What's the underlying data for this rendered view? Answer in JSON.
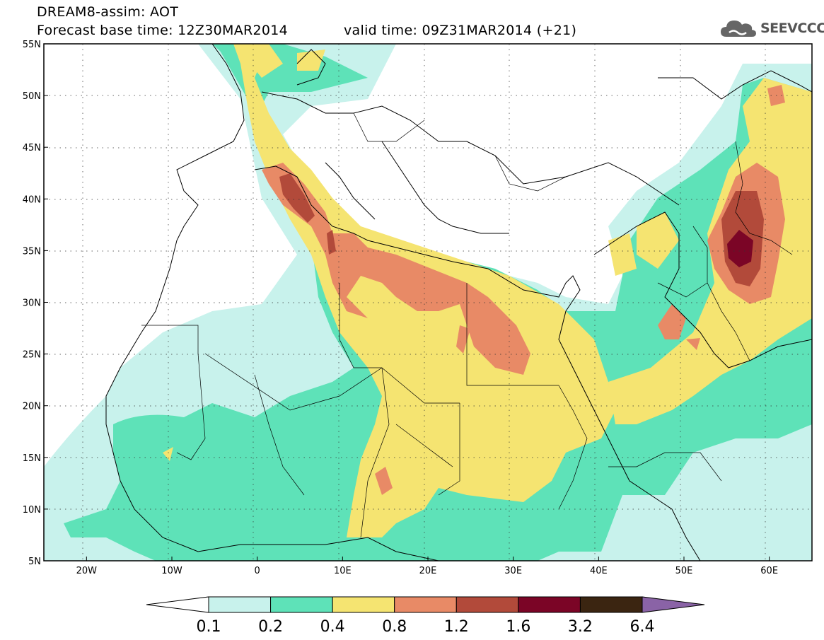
{
  "header": {
    "title": "DREAM8-assim: AOT",
    "base_time": "Forecast base time: 12Z30MAR2014",
    "valid_time": "valid time: 09Z31MAR2014 (+21)"
  },
  "logo": {
    "text": "SEEVCCC",
    "icon": "cloud-icon"
  },
  "map": {
    "lon_range": [
      -25,
      65
    ],
    "lat_range": [
      5,
      55
    ],
    "lat_ticks": [
      {
        "value": 55,
        "label": "55N"
      },
      {
        "value": 50,
        "label": "50N"
      },
      {
        "value": 45,
        "label": "45N"
      },
      {
        "value": 40,
        "label": "40N"
      },
      {
        "value": 35,
        "label": "35N"
      },
      {
        "value": 30,
        "label": "30N"
      },
      {
        "value": 25,
        "label": "25N"
      },
      {
        "value": 20,
        "label": "20N"
      },
      {
        "value": 15,
        "label": "15N"
      },
      {
        "value": 10,
        "label": "10N"
      },
      {
        "value": 5,
        "label": "5N"
      }
    ],
    "lon_ticks": [
      {
        "value": -20,
        "label": "20W"
      },
      {
        "value": -10,
        "label": "10W"
      },
      {
        "value": 0,
        "label": "0"
      },
      {
        "value": 10,
        "label": "10E"
      },
      {
        "value": 20,
        "label": "20E"
      },
      {
        "value": 30,
        "label": "30E"
      },
      {
        "value": 40,
        "label": "40E"
      },
      {
        "value": 50,
        "label": "50E"
      },
      {
        "value": 60,
        "label": "60E"
      }
    ],
    "grid": "dotted",
    "colors": {
      "c01": "#c8f2ec",
      "c02": "#5ee2b8",
      "c04": "#f5e471",
      "c08": "#e88a66",
      "c12": "#b24a3a",
      "c16": "#7b0526",
      "c32": "#3b2511",
      "c64": "#8a63a6"
    }
  },
  "colorbar": {
    "labels": [
      "0.1",
      "0.2",
      "0.4",
      "0.8",
      "1.2",
      "1.6",
      "3.2",
      "6.4"
    ],
    "colors": [
      "#c8f2ec",
      "#5ee2b8",
      "#f5e471",
      "#e88a66",
      "#b24a3a",
      "#7b0526",
      "#3b2511"
    ],
    "under_color": "#ffffff",
    "over_color": "#8a63a6"
  }
}
